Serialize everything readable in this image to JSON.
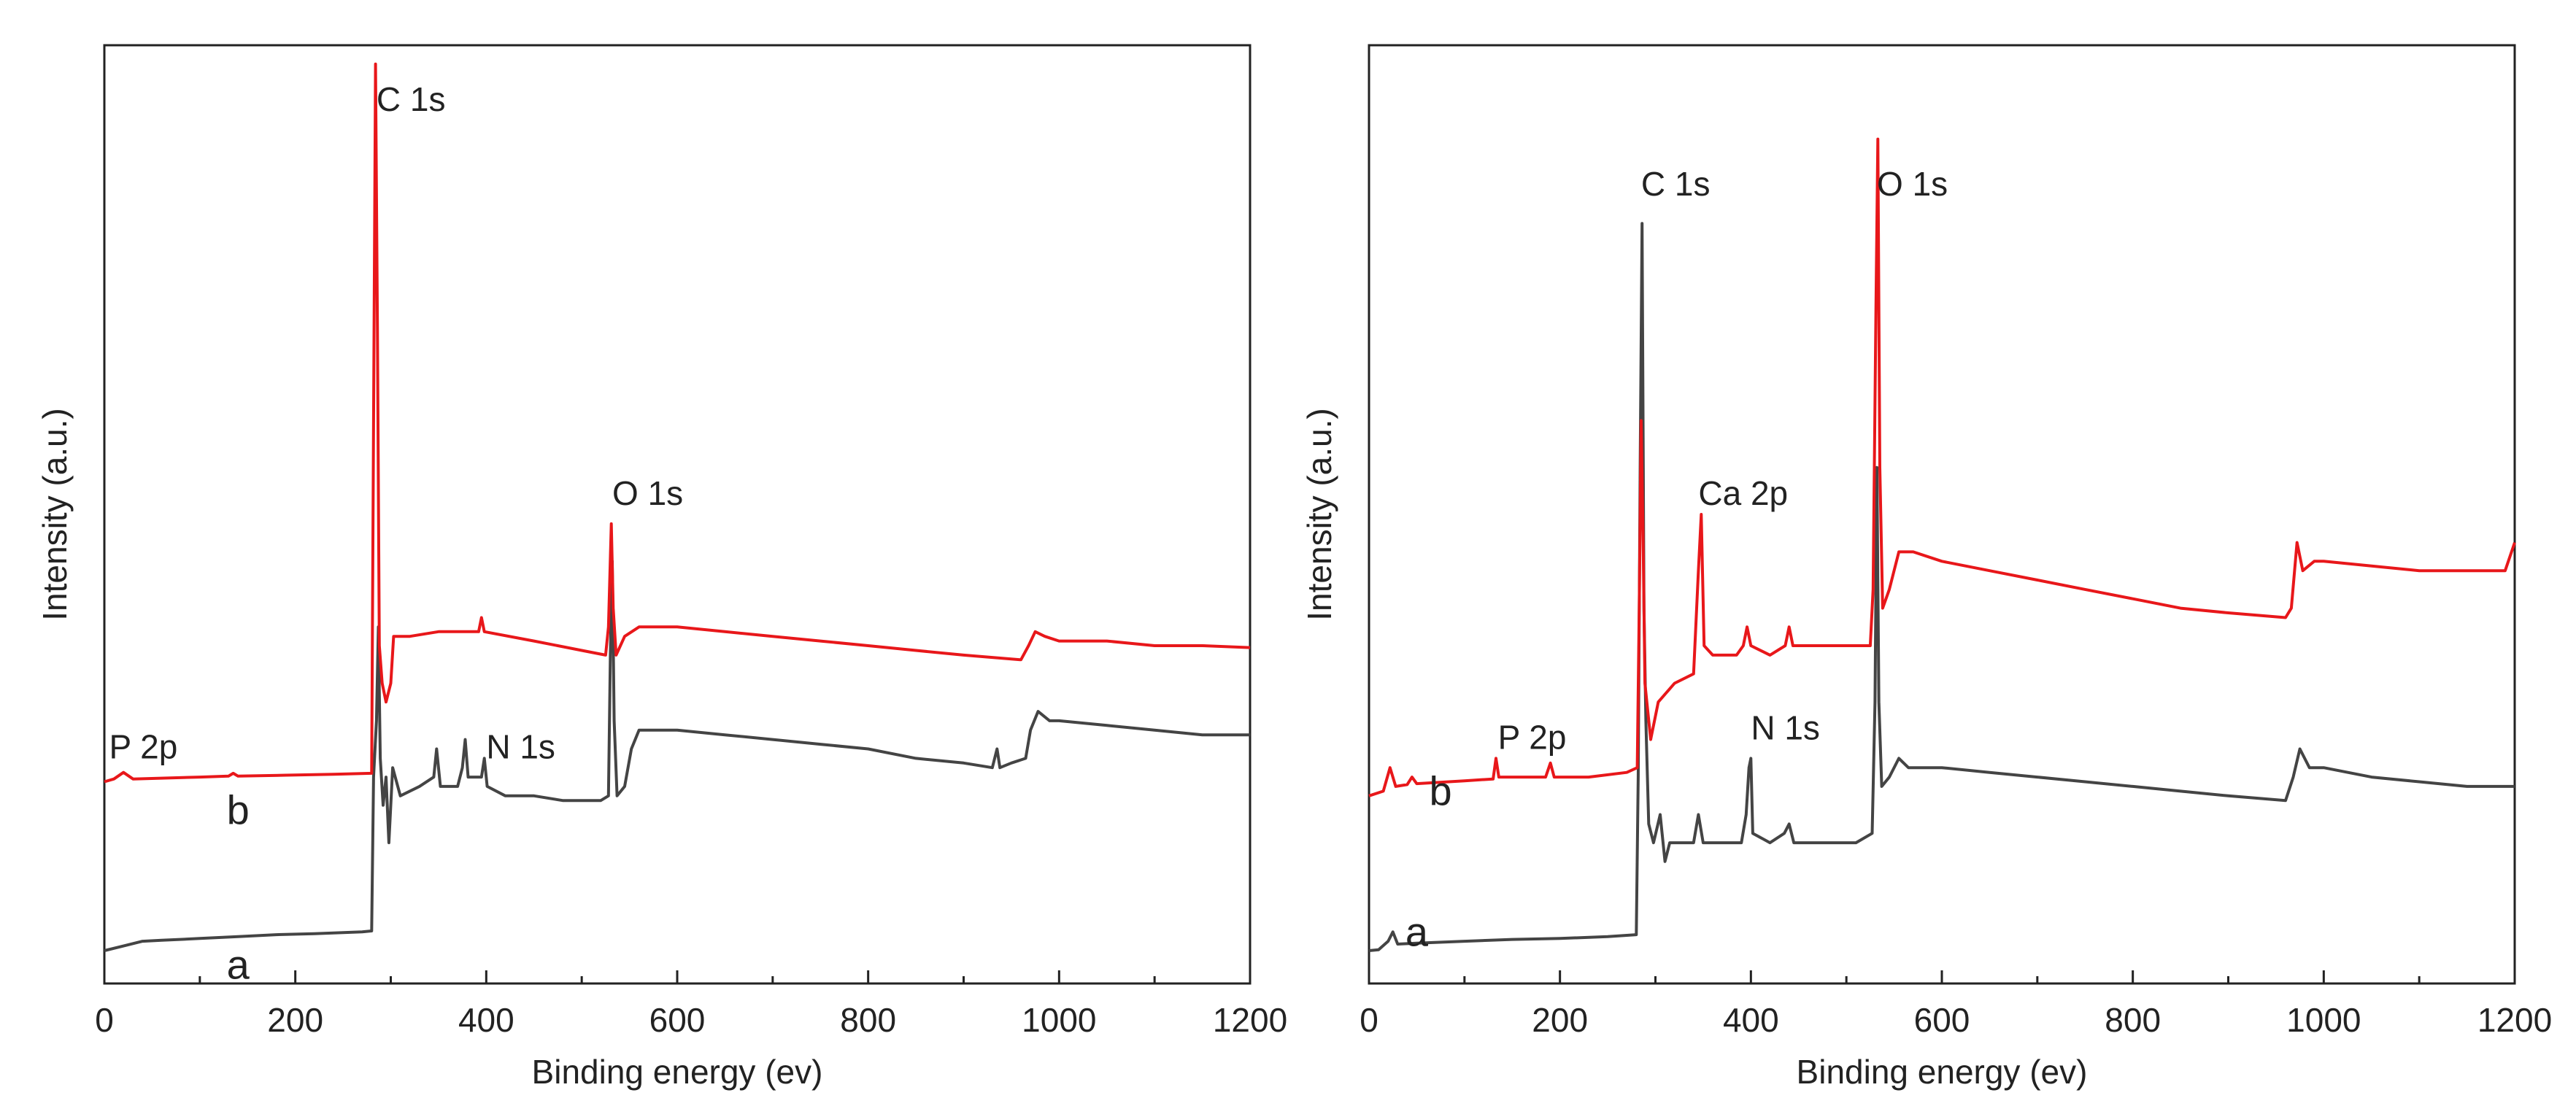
{
  "chart_data": [
    {
      "type": "line",
      "title": "",
      "xlabel": "Binding energy (ev)",
      "ylabel": "Intensity (a.u.)",
      "xlim": [
        0,
        1200
      ],
      "ylim": [
        0,
        100
      ],
      "xticks": [
        0,
        200,
        400,
        600,
        800,
        1000,
        1200
      ],
      "xtick_labels": [
        "0",
        "200",
        "400",
        "600",
        "800",
        "1000",
        "1200"
      ],
      "grid": false,
      "series": [
        {
          "name": "a",
          "color": "#444444",
          "points": [
            [
              0,
              3.5
            ],
            [
              20,
              4
            ],
            [
              40,
              4.5
            ],
            [
              60,
              4.6
            ],
            [
              100,
              4.8
            ],
            [
              140,
              5
            ],
            [
              180,
              5.2
            ],
            [
              220,
              5.3
            ],
            [
              270,
              5.5
            ],
            [
              280,
              5.6
            ],
            [
              282,
              22
            ],
            [
              285,
              28
            ],
            [
              287,
              38
            ],
            [
              289,
              24
            ],
            [
              292,
              19
            ],
            [
              295,
              22
            ],
            [
              298,
              15
            ],
            [
              302,
              23
            ],
            [
              310,
              20
            ],
            [
              330,
              21
            ],
            [
              345,
              22
            ],
            [
              348,
              25
            ],
            [
              352,
              21
            ],
            [
              370,
              21
            ],
            [
              375,
              23
            ],
            [
              378,
              26
            ],
            [
              381,
              22
            ],
            [
              395,
              22
            ],
            [
              398,
              24
            ],
            [
              401,
              21
            ],
            [
              420,
              20
            ],
            [
              450,
              20
            ],
            [
              480,
              19.5
            ],
            [
              500,
              19.5
            ],
            [
              520,
              19.5
            ],
            [
              528,
              20
            ],
            [
              530,
              35
            ],
            [
              532,
              45
            ],
            [
              534,
              28
            ],
            [
              537,
              20
            ],
            [
              545,
              21
            ],
            [
              552,
              25
            ],
            [
              560,
              27
            ],
            [
              600,
              27
            ],
            [
              650,
              26.5
            ],
            [
              700,
              26
            ],
            [
              750,
              25.5
            ],
            [
              800,
              25
            ],
            [
              850,
              24
            ],
            [
              900,
              23.5
            ],
            [
              930,
              23
            ],
            [
              935,
              25
            ],
            [
              938,
              23
            ],
            [
              950,
              23.5
            ],
            [
              965,
              24
            ],
            [
              970,
              27
            ],
            [
              978,
              29
            ],
            [
              990,
              28
            ],
            [
              1000,
              28
            ],
            [
              1050,
              27.5
            ],
            [
              1100,
              27
            ],
            [
              1150,
              26.5
            ],
            [
              1200,
              26.5
            ]
          ],
          "label_position": "left"
        },
        {
          "name": "b",
          "color": "#e8171a",
          "points": [
            [
              0,
              21.5
            ],
            [
              10,
              21.8
            ],
            [
              20,
              22.5
            ],
            [
              30,
              21.8
            ],
            [
              100,
              22
            ],
            [
              130,
              22.1
            ],
            [
              135,
              22.4
            ],
            [
              140,
              22.1
            ],
            [
              190,
              22.2
            ],
            [
              240,
              22.3
            ],
            [
              280,
              22.4
            ],
            [
              282,
              60
            ],
            [
              284,
              98
            ],
            [
              286,
              70
            ],
            [
              288,
              36
            ],
            [
              291,
              32
            ],
            [
              295,
              30
            ],
            [
              300,
              32
            ],
            [
              303,
              37
            ],
            [
              320,
              37
            ],
            [
              350,
              37.5
            ],
            [
              392,
              37.5
            ],
            [
              395,
              39
            ],
            [
              398,
              37.5
            ],
            [
              450,
              36.5
            ],
            [
              500,
              35.5
            ],
            [
              525,
              35
            ],
            [
              528,
              38
            ],
            [
              531,
              49
            ],
            [
              533,
              40
            ],
            [
              536,
              35
            ],
            [
              545,
              37
            ],
            [
              560,
              38
            ],
            [
              600,
              38
            ],
            [
              650,
              37.5
            ],
            [
              700,
              37
            ],
            [
              750,
              36.5
            ],
            [
              800,
              36
            ],
            [
              850,
              35.5
            ],
            [
              900,
              35
            ],
            [
              960,
              34.5
            ],
            [
              968,
              36
            ],
            [
              975,
              37.5
            ],
            [
              985,
              37
            ],
            [
              1000,
              36.5
            ],
            [
              1050,
              36.5
            ],
            [
              1100,
              36
            ],
            [
              1150,
              36
            ],
            [
              1200,
              35.8
            ]
          ],
          "label_position": "left"
        }
      ],
      "annotations": [
        {
          "text": "C 1s",
          "x": 285,
          "y": 93
        },
        {
          "text": "O 1s",
          "x": 532,
          "y": 51
        },
        {
          "text": "N 1s",
          "x": 400,
          "y": 24
        },
        {
          "text": "P 2p",
          "x": 5,
          "y": 24
        },
        {
          "text": "a",
          "x": 140,
          "y": 0.5
        },
        {
          "text": "b",
          "x": 140,
          "y": 17
        }
      ]
    },
    {
      "type": "line",
      "title": "",
      "xlabel": "Binding energy (ev)",
      "ylabel": "Intensity (a.u.)",
      "xlim": [
        0,
        1200
      ],
      "ylim": [
        0,
        100
      ],
      "xticks": [
        0,
        200,
        400,
        600,
        800,
        1000,
        1200
      ],
      "xtick_labels": [
        "0",
        "200",
        "400",
        "600",
        "800",
        "1000",
        "1200"
      ],
      "grid": false,
      "series": [
        {
          "name": "a",
          "color": "#444444",
          "points": [
            [
              0,
              3.5
            ],
            [
              10,
              3.6
            ],
            [
              20,
              4.5
            ],
            [
              25,
              5.5
            ],
            [
              30,
              4.2
            ],
            [
              50,
              4.3
            ],
            [
              100,
              4.5
            ],
            [
              150,
              4.7
            ],
            [
              200,
              4.8
            ],
            [
              250,
              5
            ],
            [
              280,
              5.2
            ],
            [
              282,
              22
            ],
            [
              284,
              55
            ],
            [
              286,
              81
            ],
            [
              288,
              40
            ],
            [
              290,
              28
            ],
            [
              293,
              17
            ],
            [
              298,
              15
            ],
            [
              305,
              18
            ],
            [
              310,
              13
            ],
            [
              315,
              15
            ],
            [
              340,
              15
            ],
            [
              345,
              18
            ],
            [
              350,
              15
            ],
            [
              390,
              15
            ],
            [
              395,
              18
            ],
            [
              398,
              23
            ],
            [
              400,
              24
            ],
            [
              402,
              16
            ],
            [
              420,
              15
            ],
            [
              435,
              16
            ],
            [
              440,
              17
            ],
            [
              445,
              15
            ],
            [
              480,
              15
            ],
            [
              510,
              15
            ],
            [
              527,
              16
            ],
            [
              530,
              30
            ],
            [
              532,
              55
            ],
            [
              534,
              30
            ],
            [
              537,
              21
            ],
            [
              545,
              22
            ],
            [
              555,
              24
            ],
            [
              565,
              23
            ],
            [
              600,
              23
            ],
            [
              650,
              22.5
            ],
            [
              700,
              22
            ],
            [
              750,
              21.5
            ],
            [
              800,
              21
            ],
            [
              850,
              20.5
            ],
            [
              900,
              20
            ],
            [
              960,
              19.5
            ],
            [
              968,
              22
            ],
            [
              975,
              25
            ],
            [
              985,
              23
            ],
            [
              1000,
              23
            ],
            [
              1050,
              22
            ],
            [
              1100,
              21.5
            ],
            [
              1150,
              21
            ],
            [
              1200,
              21
            ]
          ],
          "label_position": "left"
        },
        {
          "name": "b",
          "color": "#e8171a",
          "points": [
            [
              0,
              20
            ],
            [
              15,
              20.5
            ],
            [
              22,
              23
            ],
            [
              28,
              21
            ],
            [
              40,
              21.2
            ],
            [
              45,
              22
            ],
            [
              50,
              21.3
            ],
            [
              100,
              21.6
            ],
            [
              130,
              21.8
            ],
            [
              133,
              24
            ],
            [
              136,
              22
            ],
            [
              185,
              22
            ],
            [
              190,
              23.5
            ],
            [
              194,
              22
            ],
            [
              230,
              22
            ],
            [
              270,
              22.5
            ],
            [
              281,
              23
            ],
            [
              283,
              40
            ],
            [
              285,
              60
            ],
            [
              287,
              48
            ],
            [
              289,
              32
            ],
            [
              295,
              26
            ],
            [
              303,
              30
            ],
            [
              320,
              32
            ],
            [
              340,
              33
            ],
            [
              345,
              44
            ],
            [
              348,
              50
            ],
            [
              351,
              36
            ],
            [
              360,
              35
            ],
            [
              385,
              35
            ],
            [
              392,
              36
            ],
            [
              396,
              38
            ],
            [
              400,
              36
            ],
            [
              420,
              35
            ],
            [
              436,
              36
            ],
            [
              440,
              38
            ],
            [
              444,
              36
            ],
            [
              480,
              36
            ],
            [
              510,
              36
            ],
            [
              525,
              36
            ],
            [
              528,
              42
            ],
            [
              531,
              72
            ],
            [
              533,
              90
            ],
            [
              535,
              55
            ],
            [
              538,
              40
            ],
            [
              545,
              42
            ],
            [
              555,
              46
            ],
            [
              570,
              46
            ],
            [
              600,
              45
            ],
            [
              650,
              44
            ],
            [
              700,
              43
            ],
            [
              750,
              42
            ],
            [
              800,
              41
            ],
            [
              850,
              40
            ],
            [
              900,
              39.5
            ],
            [
              960,
              39
            ],
            [
              966,
              40
            ],
            [
              972,
              47
            ],
            [
              978,
              44
            ],
            [
              990,
              45
            ],
            [
              1000,
              45
            ],
            [
              1050,
              44.5
            ],
            [
              1100,
              44
            ],
            [
              1150,
              44
            ],
            [
              1190,
              44
            ],
            [
              1200,
              47
            ]
          ],
          "label_position": "left"
        }
      ],
      "annotations": [
        {
          "text": "C 1s",
          "x": 285,
          "y": 84
        },
        {
          "text": "O 1s",
          "x": 532,
          "y": 84
        },
        {
          "text": "Ca 2p",
          "x": 345,
          "y": 51
        },
        {
          "text": "P 2p",
          "x": 135,
          "y": 25
        },
        {
          "text": "N 1s",
          "x": 400,
          "y": 26
        },
        {
          "text": "a",
          "x": 50,
          "y": 4
        },
        {
          "text": "b",
          "x": 75,
          "y": 19
        }
      ]
    }
  ]
}
